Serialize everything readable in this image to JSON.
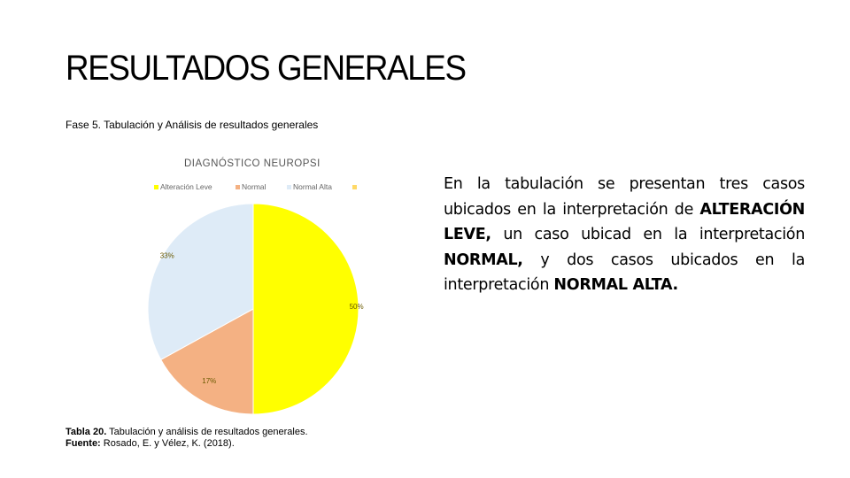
{
  "slide": {
    "title": "RESULTADOS GENERALES",
    "subtitle": "Fase 5. Tabulación y Análisis de resultados generales"
  },
  "chart_data": {
    "type": "pie",
    "title": "DIAGNÓSTICO NEUROPSI",
    "legend_position": "top",
    "legend": [
      "Alteración Leve",
      "Normal",
      "Normal Alta",
      ""
    ],
    "categories": [
      "Alteración Leve",
      "Normal",
      "Normal Alta"
    ],
    "values": [
      50,
      17,
      33
    ],
    "labels": [
      "50%",
      "17%",
      "33%"
    ],
    "colors": [
      "#ffff00",
      "#f4b183",
      "#deebf7"
    ],
    "legend_colors": [
      "#ffff00",
      "#f4b183",
      "#deebf7",
      "#ffd966"
    ]
  },
  "caption": {
    "table_label": "Tabla 20.",
    "table_text": "Tabulación y análisis de resultados generales.",
    "source_label": "Fuente:",
    "source_text": "Rosado, E. y Vélez, K. (2018)."
  },
  "body": {
    "t1": "En la tabulación se presentan tres casos ubicados en la interpretación de ",
    "b1": "ALTERACIÓN LEVE,",
    "t2": " un caso ubicad en la interpretación ",
    "b2": "NORMAL,",
    "t3": " y dos casos ubicados en la interpretación ",
    "b3": "NORMAL ALTA."
  }
}
